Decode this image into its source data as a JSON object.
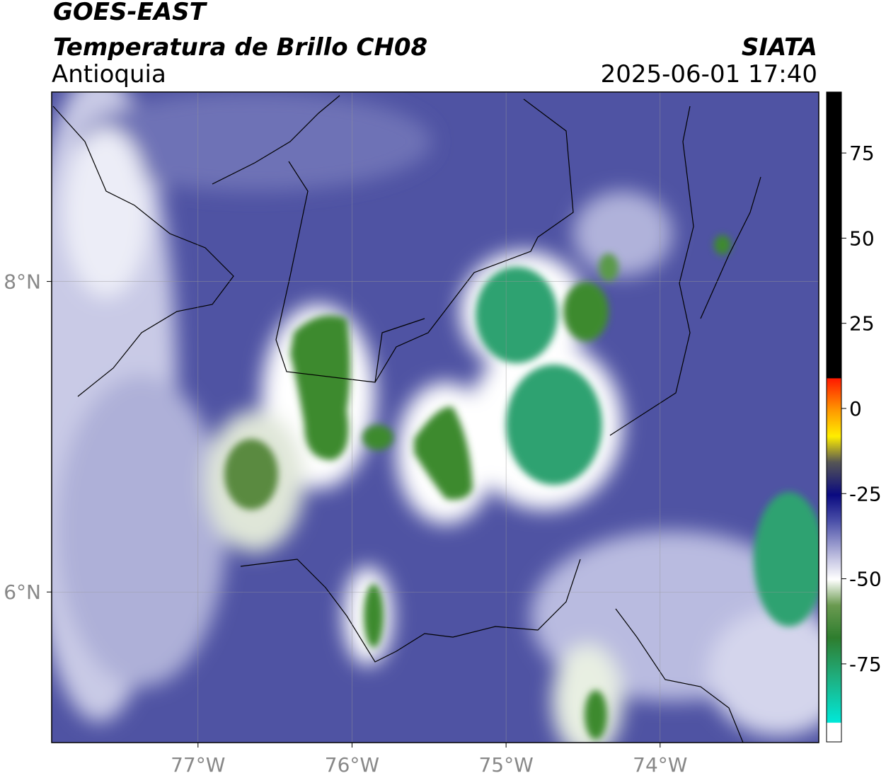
{
  "header": {
    "title": "GOES-EAST",
    "subtitle": "Temperatura de Brillo CH08",
    "region": "Antioquia",
    "source": "SIATA",
    "datetime": "2025-06-01 17:40"
  },
  "map": {
    "xlim": [
      -77.95,
      -72.97
    ],
    "ylim": [
      5.03,
      9.22
    ],
    "xticks": [
      {
        "value": -77,
        "label": "77°W"
      },
      {
        "value": -76,
        "label": "76°W"
      },
      {
        "value": -75,
        "label": "75°W"
      },
      {
        "value": -74,
        "label": "74°W"
      }
    ],
    "yticks": [
      {
        "value": 8,
        "label": "8°N"
      },
      {
        "value": 6,
        "label": "6°N"
      }
    ]
  },
  "colorbar": {
    "lim": [
      -97.9,
      92.9
    ],
    "ticks": [
      75,
      50,
      25,
      0,
      -25,
      -50,
      -75
    ]
  }
}
